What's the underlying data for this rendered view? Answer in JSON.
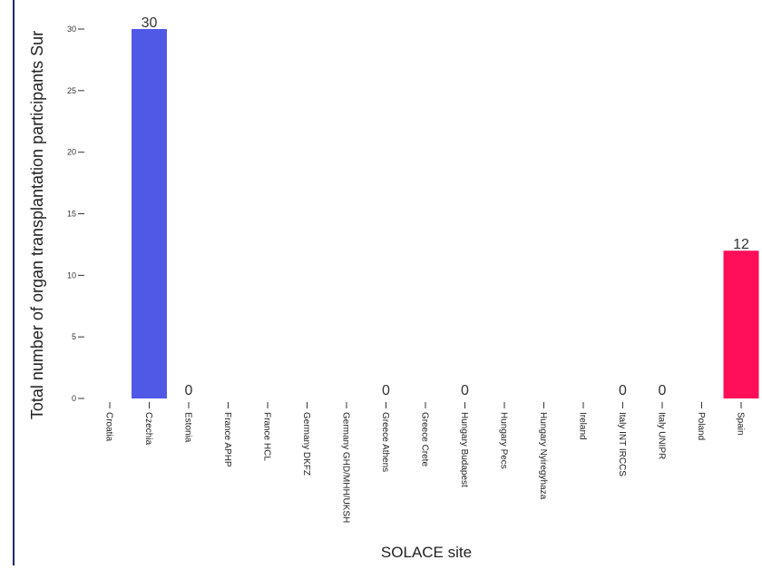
{
  "chart_data": {
    "type": "bar",
    "title": "",
    "xlabel": "SOLACE site",
    "ylabel": "Total number of organ transplantation participants Sur",
    "ylim": [
      0,
      30
    ],
    "yticks": [
      0,
      5,
      10,
      15,
      20,
      25,
      30
    ],
    "categories": [
      "Croatia",
      "Czechia",
      "Estonia",
      "France APHP",
      "France HCL",
      "Germany DKFZ",
      "Germany GHD/MHH/UKSH",
      "Greece Athens",
      "Greece Crete",
      "Hungary Budapest",
      "Hungary Pecs",
      "Hungary Nyiregyhaza",
      "Ireland",
      "Italy INT IRCCS",
      "Italy UNIPR",
      "Poland",
      "Spain"
    ],
    "values": [
      null,
      30,
      0,
      null,
      null,
      null,
      null,
      0,
      null,
      0,
      null,
      null,
      null,
      0,
      0,
      null,
      12
    ],
    "value_labels": [
      "",
      "30",
      "0",
      "",
      "",
      "",
      "",
      "0",
      "",
      "0",
      "",
      "",
      "",
      "0",
      "0",
      "",
      "12"
    ],
    "bar_colors": {
      "Czechia": "#5058e6",
      "Spain": "#ff0f5a"
    },
    "grid": false,
    "legend": "none"
  }
}
